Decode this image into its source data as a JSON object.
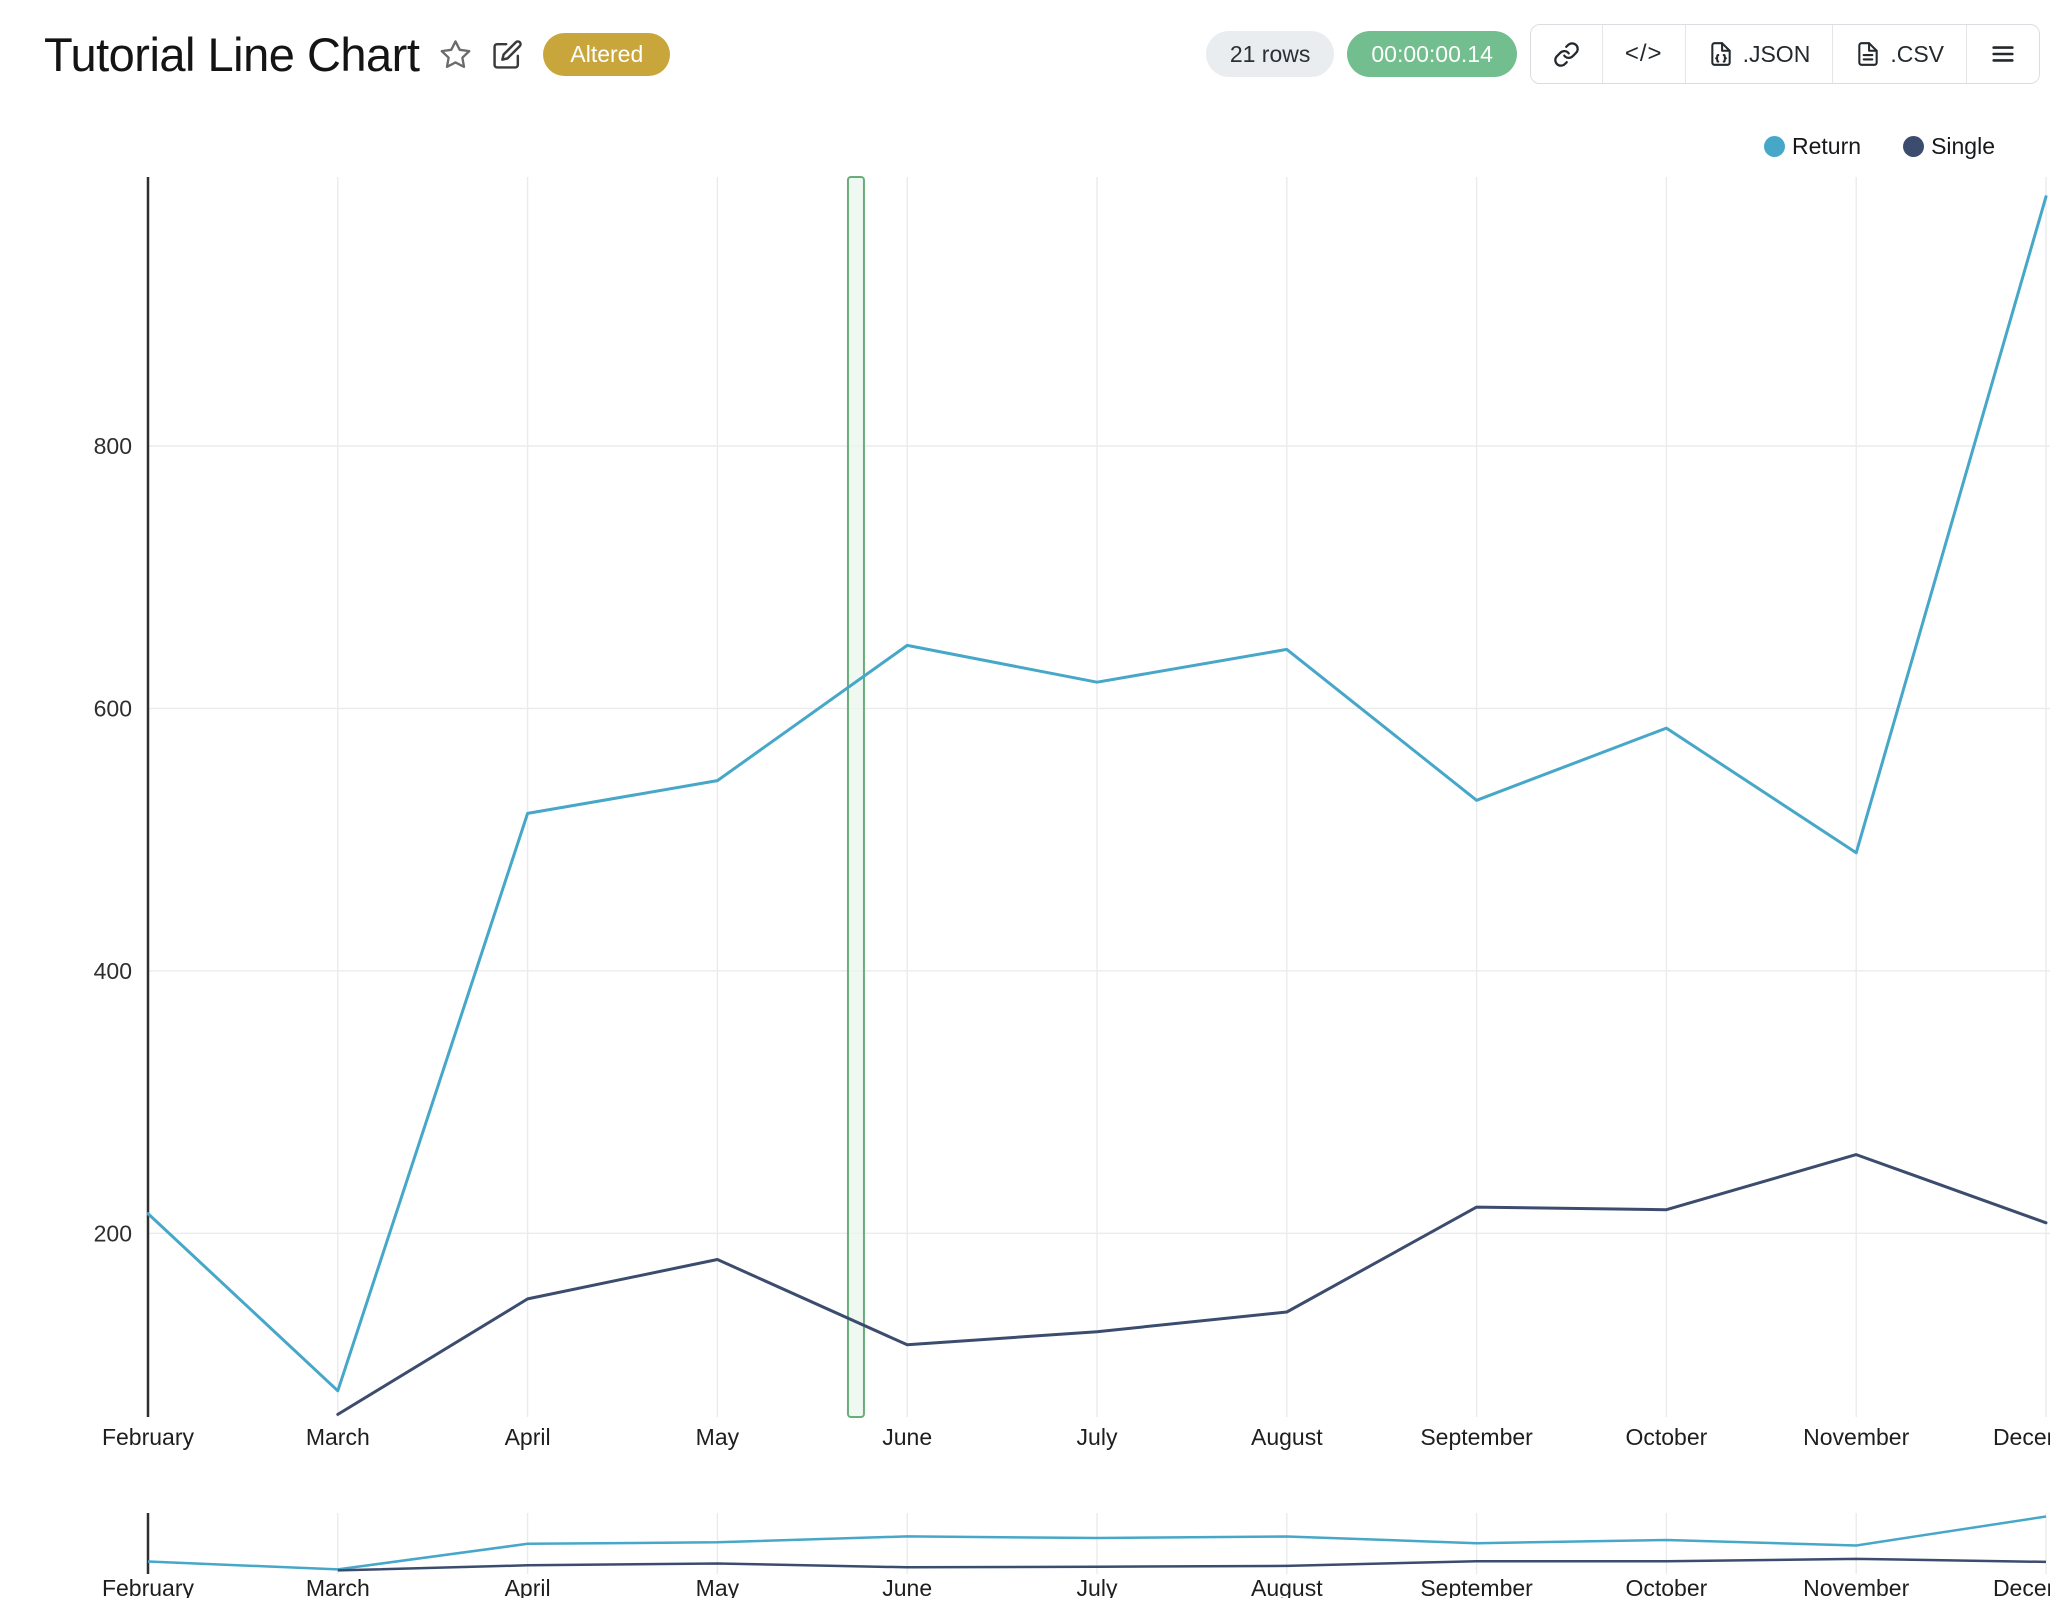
{
  "header": {
    "title": "Tutorial Line Chart",
    "status_badge": "Altered",
    "row_count": "21 rows",
    "elapsed_time": "00:00:00.14",
    "code_label": "</>",
    "json_label": ".JSON",
    "csv_label": ".CSV"
  },
  "colors": {
    "badge_bg": "#C9A63C",
    "timer_bg": "#73BE8F",
    "row_pill_bg": "#EAEDF0",
    "series_return": "#47A7C8",
    "series_single": "#3C4C6E",
    "annotation_fill": "#EAF5EC",
    "annotation_border": "#67AE79"
  },
  "chart_data": {
    "type": "line",
    "title": "Tutorial Line Chart",
    "xlabel": "",
    "ylabel": "",
    "x": [
      "February",
      "March",
      "April",
      "May",
      "June",
      "July",
      "August",
      "September",
      "October",
      "November",
      "December"
    ],
    "series": [
      {
        "name": "Return",
        "color": "#47A7C8",
        "values": [
          215,
          80,
          520,
          545,
          648,
          620,
          645,
          530,
          585,
          490,
          990
        ]
      },
      {
        "name": "Single",
        "color": "#3C4C6E",
        "values": [
          null,
          62,
          150,
          180,
          115,
          125,
          140,
          220,
          218,
          260,
          208
        ]
      }
    ],
    "ylim": [
      60,
      1005
    ],
    "yticks": [
      200,
      400,
      600,
      800
    ],
    "grid": true,
    "legend_position": "top-right",
    "mini_chart": {
      "ylim": [
        0,
        1050
      ]
    },
    "annotation": {
      "type": "vertical-band",
      "between": [
        "May",
        "June"
      ],
      "x_index": 3.73,
      "fill": "#EAF5EC",
      "border": "#67AE79"
    }
  }
}
